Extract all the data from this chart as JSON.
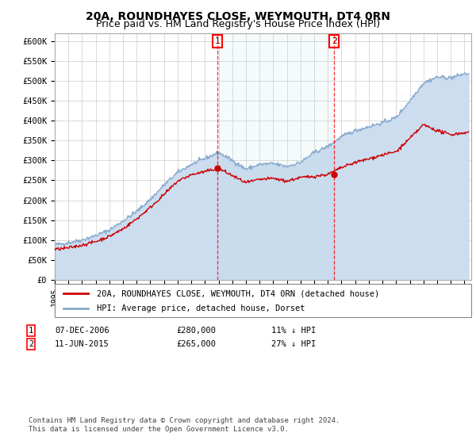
{
  "title": "20A, ROUNDHAYES CLOSE, WEYMOUTH, DT4 0RN",
  "subtitle": "Price paid vs. HM Land Registry's House Price Index (HPI)",
  "ylabel_ticks": [
    "£0",
    "£50K",
    "£100K",
    "£150K",
    "£200K",
    "£250K",
    "£300K",
    "£350K",
    "£400K",
    "£450K",
    "£500K",
    "£550K",
    "£600K"
  ],
  "ylim": [
    0,
    620000
  ],
  "xlim_start": 1995.0,
  "xlim_end": 2025.5,
  "marker1_x": 2006.92,
  "marker1_y": 280000,
  "marker2_x": 2015.45,
  "marker2_y": 265000,
  "legend_line1": "20A, ROUNDHAYES CLOSE, WEYMOUTH, DT4 0RN (detached house)",
  "legend_line2": "HPI: Average price, detached house, Dorset",
  "footer": "Contains HM Land Registry data © Crown copyright and database right 2024.\nThis data is licensed under the Open Government Licence v3.0.",
  "line_color_red": "#cc0000",
  "line_color_blue": "#88aacc",
  "fill_color_blue": "#ccddf0",
  "grid_color": "#cccccc",
  "title_fontsize": 10,
  "subtitle_fontsize": 9
}
